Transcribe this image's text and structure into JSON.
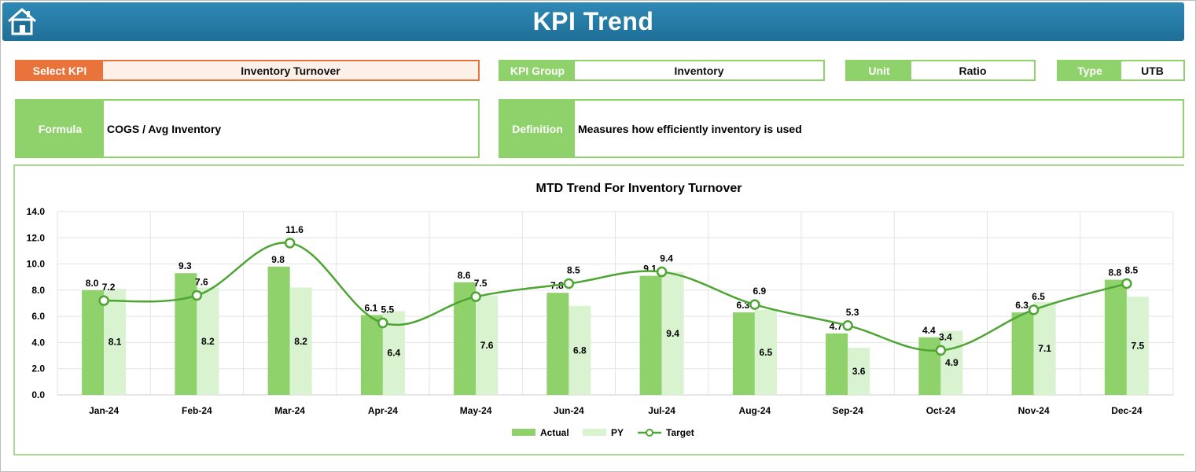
{
  "header": {
    "title": "KPI Trend",
    "home_icon": "home-icon"
  },
  "select_kpi": {
    "label": "Select KPI",
    "value": "Inventory Turnover"
  },
  "kpi_group": {
    "label": "KPI Group",
    "value": "Inventory"
  },
  "unit": {
    "label": "Unit",
    "value": "Ratio"
  },
  "type": {
    "label": "Type",
    "value": "UTB"
  },
  "formula": {
    "label": "Formula",
    "value": "COGS / Avg Inventory"
  },
  "definition": {
    "label": "Definition",
    "value": "Measures how efficiently inventory is used"
  },
  "colors": {
    "header": "#2379a6",
    "accent_green": "#8fd16a",
    "select_orange": "#e9733b",
    "actual": "#8fd16a",
    "py": "#d9f2cf",
    "target": "#4fa534"
  },
  "chart_data": {
    "type": "bar",
    "title": "MTD Trend For Inventory Turnover",
    "categories": [
      "Jan-24",
      "Feb-24",
      "Mar-24",
      "Apr-24",
      "May-24",
      "Jun-24",
      "Jul-24",
      "Aug-24",
      "Sep-24",
      "Oct-24",
      "Nov-24",
      "Dec-24"
    ],
    "series": [
      {
        "name": "Actual",
        "kind": "bar",
        "values": [
          8.0,
          9.3,
          9.8,
          6.1,
          8.6,
          7.8,
          9.1,
          6.3,
          4.7,
          4.4,
          6.3,
          8.8
        ]
      },
      {
        "name": "PY",
        "kind": "bar",
        "values": [
          8.1,
          8.2,
          8.2,
          6.4,
          7.6,
          6.8,
          9.4,
          6.5,
          3.6,
          4.9,
          7.1,
          7.5
        ]
      },
      {
        "name": "Target",
        "kind": "line",
        "values": [
          7.2,
          7.6,
          11.6,
          5.5,
          7.5,
          8.5,
          9.4,
          6.9,
          5.3,
          3.4,
          6.5,
          8.5
        ]
      }
    ],
    "ylim": [
      0,
      14
    ],
    "yticks": [
      "0.0",
      "2.0",
      "4.0",
      "6.0",
      "8.0",
      "10.0",
      "12.0",
      "14.0"
    ],
    "grid": true,
    "legend": "bottom"
  }
}
